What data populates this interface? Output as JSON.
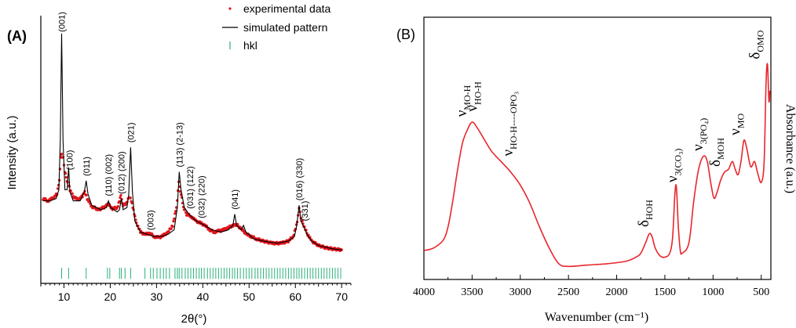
{
  "colors": {
    "experimental": "#e0151b",
    "simulated": "#000000",
    "hkl": "#2bb07a",
    "ftir": "#e8262d"
  },
  "chart_data": [
    {
      "type": "line",
      "panel_label": "(A)",
      "xlabel": "2θ(°)",
      "ylabel": "Intensity (a.u.)",
      "xlim": [
        5,
        72
      ],
      "ylim": [
        -12,
        108
      ],
      "xticks": [
        10,
        20,
        30,
        40,
        50,
        60,
        70
      ],
      "legend": {
        "position": "top-right",
        "entries": [
          "experimental data",
          "simulated pattern",
          "hkl"
        ]
      },
      "series": [
        {
          "name": "experimental data",
          "style": "markers",
          "points": [
            [
              5.5,
              26
            ],
            [
              6.5,
              25
            ],
            [
              7.5,
              26
            ],
            [
              8.5,
              28
            ],
            [
              9.0,
              34
            ],
            [
              9.3,
              45
            ],
            [
              9.5,
              46
            ],
            [
              9.8,
              44
            ],
            [
              10.2,
              38
            ],
            [
              10.8,
              33
            ],
            [
              11.3,
              30
            ],
            [
              12.0,
              27
            ],
            [
              13.0,
              25.5
            ],
            [
              14.0,
              27
            ],
            [
              14.5,
              29
            ],
            [
              15.0,
              26
            ],
            [
              16.0,
              22.5
            ],
            [
              17.5,
              21
            ],
            [
              19.0,
              22.5
            ],
            [
              19.5,
              23.5
            ],
            [
              20.5,
              21.5
            ],
            [
              21.5,
              22
            ],
            [
              22.3,
              27
            ],
            [
              22.8,
              23
            ],
            [
              23.5,
              24
            ],
            [
              24.2,
              27
            ],
            [
              24.7,
              24
            ],
            [
              25.5,
              16
            ],
            [
              26.5,
              11
            ],
            [
              27.5,
              10
            ],
            [
              28.5,
              10.5
            ],
            [
              29.5,
              9
            ],
            [
              30.5,
              8.5
            ],
            [
              31.5,
              9.5
            ],
            [
              32.5,
              11
            ],
            [
              33.5,
              14
            ],
            [
              34.3,
              22
            ],
            [
              34.8,
              33
            ],
            [
              35.3,
              28
            ],
            [
              35.8,
              22
            ],
            [
              36.5,
              19
            ],
            [
              37.5,
              18
            ],
            [
              38.5,
              16
            ],
            [
              39.5,
              15
            ],
            [
              40.5,
              14
            ],
            [
              41.5,
              12
            ],
            [
              42.5,
              11
            ],
            [
              43.5,
              11.5
            ],
            [
              44.5,
              12
            ],
            [
              45.5,
              13
            ],
            [
              46.5,
              14
            ],
            [
              47.0,
              14.5
            ],
            [
              47.5,
              14
            ],
            [
              48.5,
              12
            ],
            [
              49.5,
              10
            ],
            [
              50.5,
              9
            ],
            [
              51.5,
              8
            ],
            [
              53,
              7
            ],
            [
              55,
              6
            ],
            [
              57,
              6
            ],
            [
              58.5,
              7
            ],
            [
              59.5,
              9
            ],
            [
              60.4,
              15
            ],
            [
              60.8,
              22
            ],
            [
              61.2,
              17
            ],
            [
              61.8,
              14
            ],
            [
              62.5,
              10.5
            ],
            [
              63.5,
              7
            ],
            [
              65,
              5
            ],
            [
              66.5,
              4
            ],
            [
              68,
              3.5
            ],
            [
              70,
              3
            ]
          ]
        },
        {
          "name": "simulated pattern",
          "style": "line",
          "points": [
            [
              5.5,
              25
            ],
            [
              7,
              25
            ],
            [
              8.3,
              26
            ],
            [
              8.9,
              30
            ],
            [
              9.2,
              52
            ],
            [
              9.5,
              100
            ],
            [
              9.8,
              52
            ],
            [
              10.2,
              30
            ],
            [
              10.7,
              30
            ],
            [
              11.0,
              40
            ],
            [
              11.3,
              29
            ],
            [
              12.0,
              25
            ],
            [
              13.5,
              25
            ],
            [
              14.4,
              29
            ],
            [
              14.8,
              34
            ],
            [
              15.2,
              28
            ],
            [
              16,
              23
            ],
            [
              18,
              21
            ],
            [
              19.2,
              22
            ],
            [
              19.6,
              25
            ],
            [
              20.1,
              22
            ],
            [
              21.5,
              20
            ],
            [
              22.0,
              21
            ],
            [
              22.4,
              26
            ],
            [
              22.8,
              21
            ],
            [
              23.6,
              22
            ],
            [
              24.0,
              28
            ],
            [
              24.4,
              49
            ],
            [
              24.8,
              29
            ],
            [
              25.3,
              16
            ],
            [
              26.5,
              11
            ],
            [
              28,
              10
            ],
            [
              29.5,
              9
            ],
            [
              31,
              9
            ],
            [
              32.5,
              10
            ],
            [
              33.8,
              12
            ],
            [
              34.5,
              22
            ],
            [
              34.9,
              38
            ],
            [
              35.3,
              30
            ],
            [
              36,
              22
            ],
            [
              37,
              19
            ],
            [
              38.5,
              16
            ],
            [
              40,
              14.5
            ],
            [
              42,
              12
            ],
            [
              44,
              11
            ],
            [
              45.5,
              12
            ],
            [
              46.5,
              14
            ],
            [
              46.9,
              19
            ],
            [
              47.3,
              14
            ],
            [
              48.3,
              12
            ],
            [
              48.8,
              14
            ],
            [
              49.3,
              11
            ],
            [
              51,
              8
            ],
            [
              53,
              7
            ],
            [
              56,
              6
            ],
            [
              58.5,
              7
            ],
            [
              59.8,
              9
            ],
            [
              60.3,
              14
            ],
            [
              60.8,
              23
            ],
            [
              61.2,
              16
            ],
            [
              61.9,
              13
            ],
            [
              62.5,
              10
            ],
            [
              63.5,
              7
            ],
            [
              65,
              5
            ],
            [
              68,
              3.5
            ],
            [
              70,
              3
            ]
          ]
        },
        {
          "name": "hkl",
          "style": "ticks",
          "positions": [
            9.5,
            11.0,
            14.8,
            19.4,
            19.9,
            22.0,
            22.4,
            23.2,
            24.4,
            27.5,
            28.7,
            29.3,
            30.1,
            30.8,
            31.5,
            32.1,
            32.8,
            34.0,
            34.5,
            34.9,
            35.5,
            36.2,
            36.8,
            37.4,
            38.0,
            38.6,
            39.2,
            39.7,
            40.3,
            41.0,
            41.6,
            42.2,
            42.8,
            43.4,
            44.0,
            44.6,
            45.2,
            45.8,
            46.4,
            46.9,
            47.5,
            48.1,
            48.8,
            49.4,
            50.0,
            50.6,
            51.3,
            51.9,
            52.5,
            53.1,
            53.7,
            54.3,
            54.9,
            55.5,
            56.1,
            56.7,
            57.3,
            57.9,
            58.5,
            59.1,
            59.7,
            60.3,
            60.8,
            61.4,
            62.0,
            62.6,
            63.2,
            63.8,
            64.4,
            65.0,
            65.6,
            66.2,
            66.8,
            67.4,
            68.0,
            68.6,
            69.2,
            69.8
          ]
        }
      ],
      "peak_labels": [
        {
          "text": "(001)",
          "x": 9.5
        },
        {
          "text": "(100)",
          "x": 11.2
        },
        {
          "text": "(011)",
          "x": 14.8
        },
        {
          "text": "(110) (002)",
          "x": 19.6
        },
        {
          "text": "(012) (200)",
          "x": 22.4
        },
        {
          "text": "(021)",
          "x": 24.4
        },
        {
          "text": "(003)",
          "x": 28.7
        },
        {
          "text": "(113) (2-13)",
          "x": 34.9
        },
        {
          "text": "(031) (122)",
          "x": 37.2
        },
        {
          "text": "(032) (220)",
          "x": 39.7
        },
        {
          "text": "(041)",
          "x": 46.9
        },
        {
          "text": "(016) (330)",
          "x": 60.8
        },
        {
          "text": "(331)",
          "x": 62.0
        }
      ]
    },
    {
      "type": "line",
      "panel_label": "(B)",
      "xlabel": "Wavenumber (cm⁻¹)",
      "ylabel": "Absorbance (a.u.)",
      "xlim": [
        4000,
        400
      ],
      "ylim": [
        0,
        1
      ],
      "xticks": [
        4000,
        3500,
        3000,
        2500,
        2000,
        1500,
        1000,
        500
      ],
      "series": [
        {
          "name": "",
          "points": [
            [
              4000,
              0.11
            ],
            [
              3900,
              0.12
            ],
            [
              3800,
              0.15
            ],
            [
              3750,
              0.2
            ],
            [
              3700,
              0.3
            ],
            [
              3650,
              0.42
            ],
            [
              3600,
              0.52
            ],
            [
              3550,
              0.57
            ],
            [
              3500,
              0.6
            ],
            [
              3450,
              0.58
            ],
            [
              3400,
              0.55
            ],
            [
              3300,
              0.49
            ],
            [
              3200,
              0.45
            ],
            [
              3100,
              0.41
            ],
            [
              3000,
              0.36
            ],
            [
              2900,
              0.29
            ],
            [
              2800,
              0.2
            ],
            [
              2700,
              0.12
            ],
            [
              2600,
              0.06
            ],
            [
              2500,
              0.05
            ],
            [
              2300,
              0.055
            ],
            [
              2100,
              0.06
            ],
            [
              1900,
              0.07
            ],
            [
              1800,
              0.085
            ],
            [
              1750,
              0.1
            ],
            [
              1700,
              0.14
            ],
            [
              1660,
              0.175
            ],
            [
              1630,
              0.16
            ],
            [
              1600,
              0.12
            ],
            [
              1550,
              0.09
            ],
            [
              1500,
              0.085
            ],
            [
              1450,
              0.1
            ],
            [
              1420,
              0.16
            ],
            [
              1395,
              0.33
            ],
            [
              1380,
              0.35
            ],
            [
              1360,
              0.2
            ],
            [
              1340,
              0.11
            ],
            [
              1320,
              0.1
            ],
            [
              1250,
              0.14
            ],
            [
              1200,
              0.3
            ],
            [
              1150,
              0.42
            ],
            [
              1100,
              0.47
            ],
            [
              1060,
              0.45
            ],
            [
              1020,
              0.36
            ],
            [
              990,
              0.31
            ],
            [
              960,
              0.33
            ],
            [
              920,
              0.38
            ],
            [
              880,
              0.41
            ],
            [
              840,
              0.42
            ],
            [
              800,
              0.45
            ],
            [
              770,
              0.42
            ],
            [
              740,
              0.4
            ],
            [
              710,
              0.45
            ],
            [
              680,
              0.53
            ],
            [
              650,
              0.5
            ],
            [
              610,
              0.43
            ],
            [
              570,
              0.45
            ],
            [
              540,
              0.41
            ],
            [
              500,
              0.37
            ],
            [
              470,
              0.45
            ],
            [
              450,
              0.75
            ],
            [
              435,
              0.82
            ],
            [
              420,
              0.68
            ],
            [
              410,
              0.72
            ]
          ]
        }
      ],
      "annotations": [
        {
          "main": "ν",
          "sub": "MO-H"
        },
        {
          "main": "ν",
          "sub": "HO-H"
        },
        {
          "main": "ν",
          "sub": "HO-H----OPO₃"
        },
        {
          "main": "δ",
          "sub": "HOH"
        },
        {
          "main": "ν",
          "sub": "3(CO₃)"
        },
        {
          "main": "ν",
          "sub": "3(PO₄)"
        },
        {
          "main": "δ",
          "sub": "MOH"
        },
        {
          "main": "ν",
          "sub": "MO"
        },
        {
          "main": "δ",
          "sub": "OMO"
        }
      ]
    }
  ]
}
